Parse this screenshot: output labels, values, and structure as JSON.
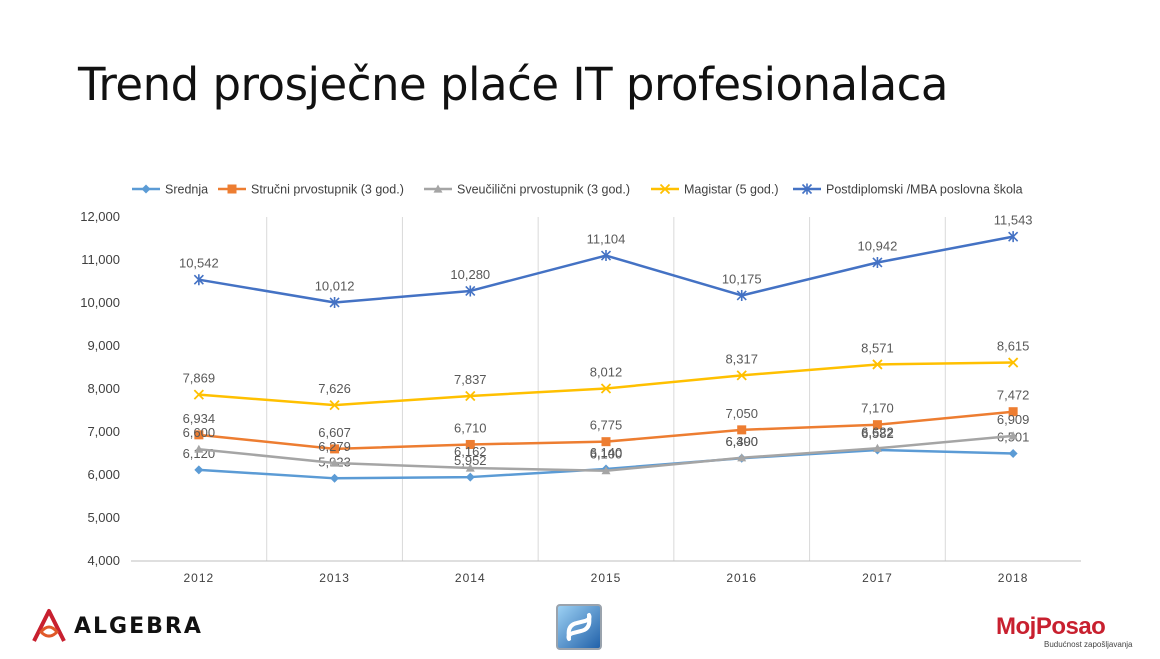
{
  "slide": {
    "title": "Trend prosječne plaće IT profesionalaca"
  },
  "chart_data": {
    "type": "line",
    "title": "",
    "xlabel": "",
    "ylabel": "",
    "categories": [
      "2012",
      "2013",
      "2014",
      "2015",
      "2016",
      "2017",
      "2018"
    ],
    "ylim": [
      4000,
      12000
    ],
    "yticks": [
      "4,000",
      "5,000",
      "6,000",
      "7,000",
      "8,000",
      "9,000",
      "10,000",
      "11,000",
      "12,000"
    ],
    "grid": "vertical",
    "legend": "top",
    "series": [
      {
        "name": "Srednja",
        "color": "#5b9bd5",
        "marker": "diamond",
        "values": [
          6120,
          5923,
          5952,
          6140,
          6390,
          6582,
          6501
        ],
        "labels": [
          "6,120",
          "5,923",
          "5,952",
          "6,140",
          "6,390",
          "6,582",
          "6,501"
        ]
      },
      {
        "name": "Stručni prvostupnik (3 god.)",
        "color": "#ed7d31",
        "marker": "square",
        "values": [
          6934,
          6607,
          6710,
          6775,
          7050,
          7170,
          7472
        ],
        "labels": [
          "6,934",
          "6,607",
          "6,710",
          "6,775",
          "7,050",
          "7,170",
          "7,472"
        ]
      },
      {
        "name": "Sveučilični prvostupnik (3 god.)",
        "color": "#a5a5a5",
        "marker": "triangle",
        "values": [
          6600,
          6279,
          6162,
          6100,
          6400,
          6622,
          6909
        ],
        "labels": [
          "6,600",
          "6,279",
          "6,162",
          "6,100",
          "6,400",
          "6,622",
          "6,909"
        ]
      },
      {
        "name": "Magistar (5 god.)",
        "color": "#ffc000",
        "marker": "x",
        "values": [
          7869,
          7626,
          7837,
          8012,
          8317,
          8571,
          8615
        ],
        "labels": [
          "7,869",
          "7,626",
          "7,837",
          "8,012",
          "8,317",
          "8,571",
          "8,615"
        ]
      },
      {
        "name": "Postdiplomski /MBA poslovna škola",
        "color": "#4472c4",
        "marker": "star",
        "values": [
          10542,
          10012,
          10280,
          11104,
          10175,
          10942,
          11543
        ],
        "labels": [
          "10,542",
          "10,012",
          "10,280",
          "11,104",
          "10,175",
          "10,942",
          "11,543"
        ]
      }
    ]
  },
  "logos": {
    "left": "ALGEBRA",
    "right": "MojPosao",
    "right_tagline": "Budućnost zapošljavanja"
  }
}
